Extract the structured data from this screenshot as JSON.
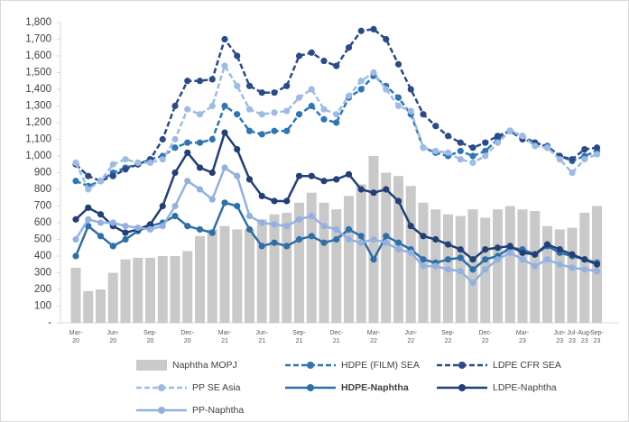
{
  "chart_data": {
    "type": "combo",
    "categories": [
      "Mar-20",
      null,
      null,
      "Jun-20",
      null,
      null,
      "Sep-20",
      null,
      null,
      "Dec-20",
      null,
      null,
      "Mar-21",
      null,
      null,
      "Jun-21",
      null,
      null,
      "Sep-21",
      null,
      null,
      "Dec-21",
      null,
      null,
      "Mar-22",
      null,
      null,
      "Jun-22",
      null,
      null,
      "Sep-22",
      null,
      null,
      "Dec-22",
      null,
      null,
      "Mar-23",
      null,
      null,
      "Jun-23",
      "Jul-23",
      "Aug-23",
      "Sep-23"
    ],
    "ylim": [
      0,
      1800
    ],
    "yticks": [
      {
        "value": 0,
        "label": "-"
      },
      100,
      200,
      300,
      400,
      500,
      600,
      700,
      800,
      900,
      {
        "value": 1000,
        "label": "1,000"
      },
      {
        "value": 1100,
        "label": "1,100"
      },
      {
        "value": 1200,
        "label": "1,200"
      },
      {
        "value": 1300,
        "label": "1,300"
      },
      {
        "value": 1400,
        "label": "1,400"
      },
      {
        "value": 1500,
        "label": "1,500"
      },
      {
        "value": 1600,
        "label": "1,600"
      },
      {
        "value": 1700,
        "label": "1,700"
      },
      {
        "value": 1800,
        "label": "1,800"
      }
    ],
    "series": [
      {
        "name": "Naphtha MOPJ",
        "type": "bar",
        "color": "#c9c9c9",
        "values": [
          330,
          190,
          200,
          300,
          380,
          390,
          390,
          400,
          400,
          430,
          520,
          560,
          580,
          560,
          560,
          620,
          650,
          660,
          720,
          780,
          720,
          680,
          760,
          830,
          1000,
          900,
          880,
          820,
          720,
          680,
          650,
          640,
          680,
          630,
          680,
          700,
          680,
          670,
          580,
          560,
          570,
          660,
          700
        ]
      },
      {
        "name": "HDPE (FILM) SEA",
        "type": "line",
        "style": "dashed",
        "color": "#2e75b6",
        "values": [
          850,
          820,
          850,
          900,
          930,
          950,
          980,
          1000,
          1050,
          1080,
          1080,
          1100,
          1300,
          1250,
          1150,
          1130,
          1150,
          1150,
          1250,
          1300,
          1220,
          1200,
          1350,
          1400,
          1480,
          1420,
          1350,
          1250,
          1050,
          1020,
          1000,
          1030,
          1000,
          1030,
          1100,
          1150,
          1120,
          1080,
          1060,
          1000,
          970,
          1000,
          1030
        ]
      },
      {
        "name": "LDPE CFR SEA",
        "type": "line",
        "style": "dashed",
        "color": "#2a4a8a",
        "values": [
          950,
          880,
          850,
          880,
          920,
          950,
          980,
          1100,
          1300,
          1450,
          1450,
          1460,
          1700,
          1600,
          1420,
          1380,
          1380,
          1420,
          1600,
          1620,
          1570,
          1540,
          1650,
          1750,
          1760,
          1700,
          1550,
          1400,
          1250,
          1180,
          1120,
          1080,
          1050,
          1080,
          1120,
          1150,
          1100,
          1080,
          1050,
          1000,
          980,
          1040,
          1050
        ]
      },
      {
        "name": "PP SE Asia",
        "type": "line",
        "style": "dashed",
        "color": "#9dbbe6",
        "values": [
          960,
          800,
          850,
          950,
          980,
          960,
          960,
          980,
          1100,
          1280,
          1250,
          1300,
          1540,
          1420,
          1280,
          1250,
          1260,
          1270,
          1350,
          1400,
          1280,
          1250,
          1360,
          1450,
          1500,
          1400,
          1300,
          1270,
          1050,
          1030,
          1020,
          980,
          960,
          1000,
          1080,
          1150,
          1120,
          1060,
          1050,
          980,
          900,
          980,
          1010
        ]
      },
      {
        "name": "HDPE-Naphtha",
        "type": "line",
        "style": "solid",
        "color": "#2f6fa8",
        "values": [
          400,
          580,
          520,
          460,
          500,
          550,
          580,
          600,
          640,
          580,
          560,
          540,
          720,
          700,
          560,
          460,
          480,
          460,
          500,
          520,
          480,
          500,
          560,
          520,
          380,
          520,
          480,
          440,
          380,
          360,
          380,
          390,
          320,
          380,
          400,
          450,
          440,
          410,
          460,
          420,
          400,
          380,
          360
        ]
      },
      {
        "name": "LDPE-Naphtha",
        "type": "line",
        "style": "solid",
        "color": "#233f78",
        "values": [
          620,
          690,
          650,
          580,
          540,
          560,
          590,
          700,
          900,
          1020,
          930,
          900,
          1140,
          1040,
          860,
          760,
          730,
          730,
          880,
          880,
          850,
          860,
          890,
          800,
          780,
          800,
          730,
          580,
          520,
          500,
          470,
          440,
          380,
          440,
          450,
          460,
          420,
          410,
          470,
          440,
          410,
          380,
          350
        ]
      },
      {
        "name": "PP-Naphtha",
        "type": "line",
        "style": "solid",
        "color": "#93b1e0",
        "values": [
          500,
          620,
          600,
          600,
          580,
          570,
          560,
          580,
          700,
          850,
          800,
          740,
          930,
          880,
          640,
          600,
          590,
          580,
          620,
          640,
          580,
          560,
          500,
          480,
          500,
          480,
          440,
          420,
          340,
          340,
          320,
          310,
          240,
          320,
          380,
          420,
          380,
          340,
          380,
          350,
          330,
          320,
          310
        ]
      }
    ]
  }
}
